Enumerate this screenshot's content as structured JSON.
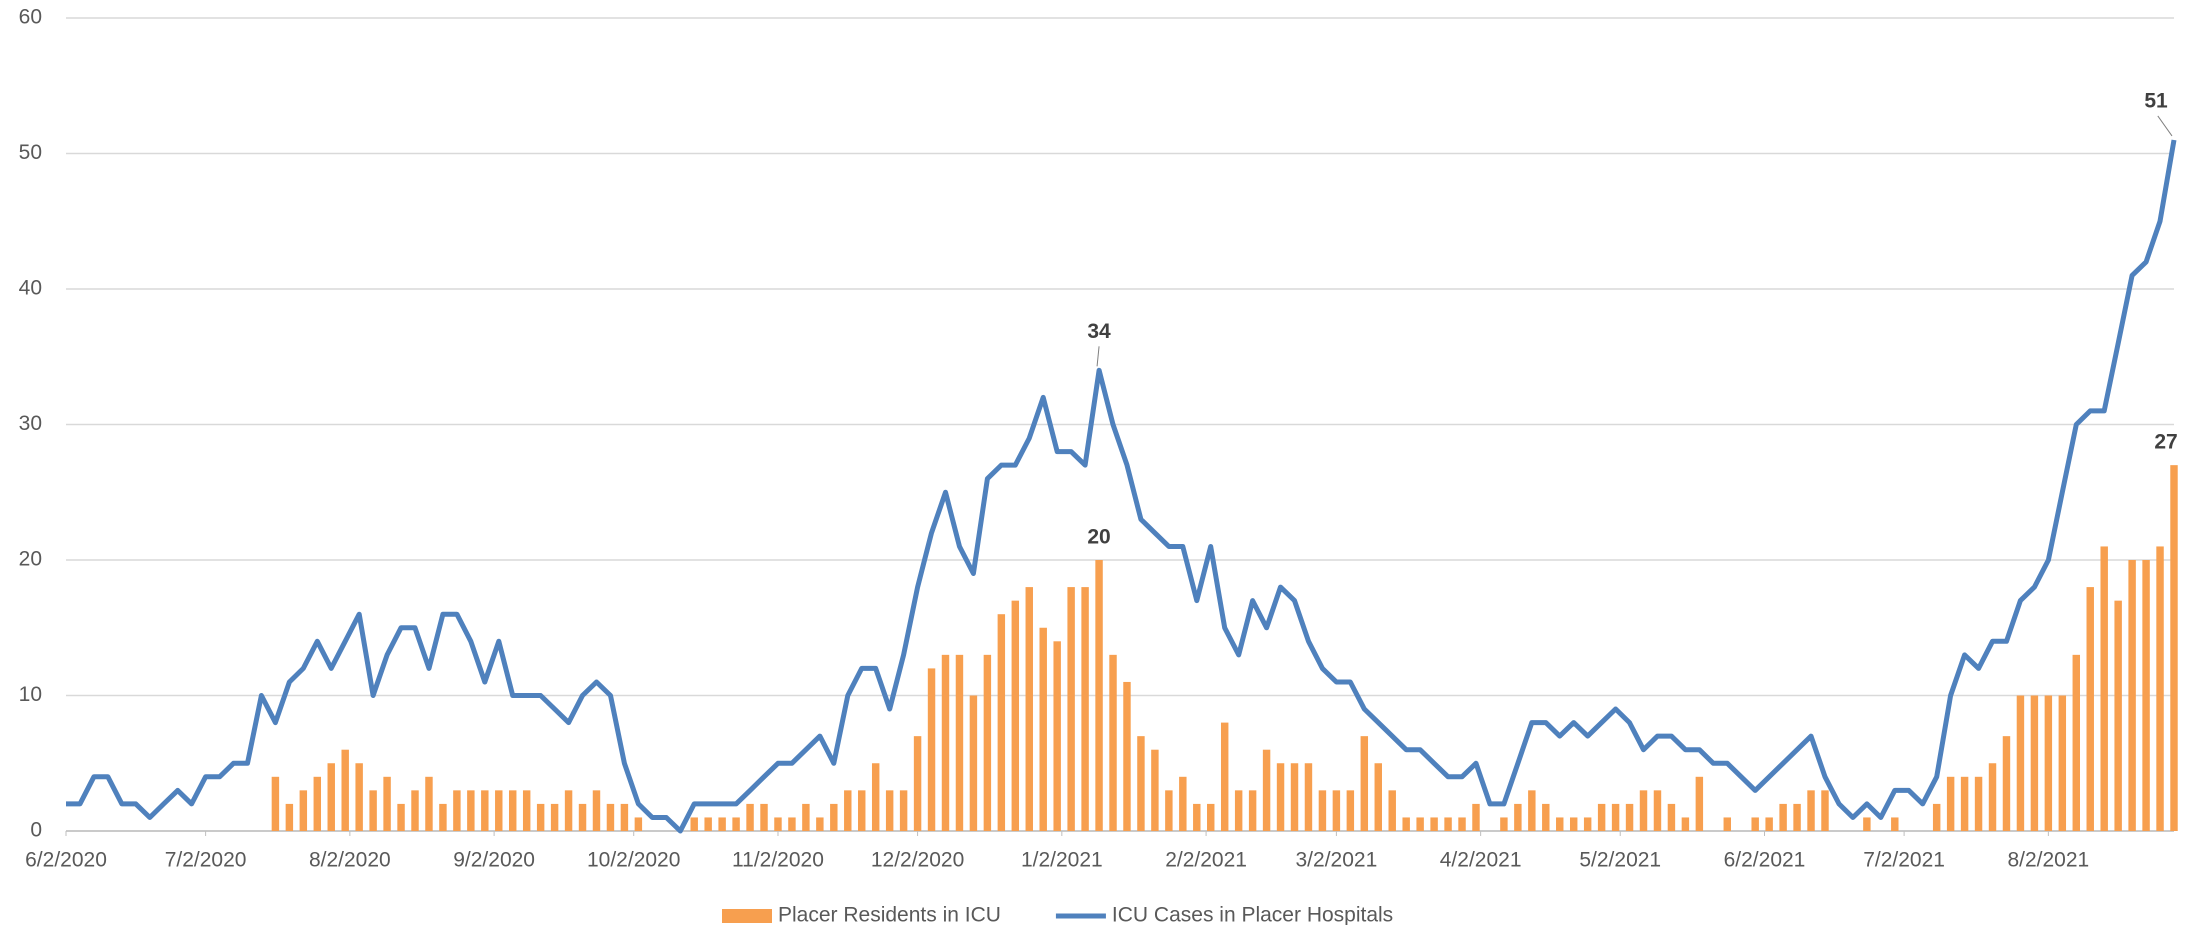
{
  "chart_data": {
    "type": "combo",
    "x": [
      "2020-06-02",
      "2020-06-05",
      "2020-06-08",
      "2020-06-11",
      "2020-06-14",
      "2020-06-17",
      "2020-06-20",
      "2020-06-23",
      "2020-06-26",
      "2020-06-29",
      "2020-07-02",
      "2020-07-05",
      "2020-07-08",
      "2020-07-11",
      "2020-07-14",
      "2020-07-17",
      "2020-07-20",
      "2020-07-23",
      "2020-07-26",
      "2020-07-29",
      "2020-08-01",
      "2020-08-04",
      "2020-08-07",
      "2020-08-10",
      "2020-08-13",
      "2020-08-16",
      "2020-08-19",
      "2020-08-22",
      "2020-08-25",
      "2020-08-28",
      "2020-08-31",
      "2020-09-03",
      "2020-09-06",
      "2020-09-09",
      "2020-09-12",
      "2020-09-15",
      "2020-09-18",
      "2020-09-21",
      "2020-09-24",
      "2020-09-27",
      "2020-09-30",
      "2020-10-03",
      "2020-10-06",
      "2020-10-09",
      "2020-10-12",
      "2020-10-15",
      "2020-10-18",
      "2020-10-21",
      "2020-10-24",
      "2020-10-27",
      "2020-10-30",
      "2020-11-02",
      "2020-11-05",
      "2020-11-08",
      "2020-11-11",
      "2020-11-14",
      "2020-11-17",
      "2020-11-20",
      "2020-11-23",
      "2020-11-26",
      "2020-11-29",
      "2020-12-02",
      "2020-12-05",
      "2020-12-08",
      "2020-12-11",
      "2020-12-14",
      "2020-12-17",
      "2020-12-20",
      "2020-12-23",
      "2020-12-26",
      "2020-12-29",
      "2021-01-01",
      "2021-01-04",
      "2021-01-07",
      "2021-01-10",
      "2021-01-13",
      "2021-01-16",
      "2021-01-19",
      "2021-01-22",
      "2021-01-25",
      "2021-01-28",
      "2021-01-31",
      "2021-02-03",
      "2021-02-06",
      "2021-02-09",
      "2021-02-12",
      "2021-02-15",
      "2021-02-18",
      "2021-02-21",
      "2021-02-24",
      "2021-02-27",
      "2021-03-02",
      "2021-03-05",
      "2021-03-08",
      "2021-03-11",
      "2021-03-14",
      "2021-03-17",
      "2021-03-20",
      "2021-03-23",
      "2021-03-26",
      "2021-03-29",
      "2021-04-01",
      "2021-04-04",
      "2021-04-07",
      "2021-04-10",
      "2021-04-13",
      "2021-04-16",
      "2021-04-19",
      "2021-04-22",
      "2021-04-25",
      "2021-04-28",
      "2021-05-01",
      "2021-05-04",
      "2021-05-07",
      "2021-05-10",
      "2021-05-13",
      "2021-05-16",
      "2021-05-19",
      "2021-05-22",
      "2021-05-25",
      "2021-05-28",
      "2021-05-31",
      "2021-06-03",
      "2021-06-06",
      "2021-06-09",
      "2021-06-12",
      "2021-06-15",
      "2021-06-18",
      "2021-06-21",
      "2021-06-24",
      "2021-06-27",
      "2021-06-30",
      "2021-07-03",
      "2021-07-06",
      "2021-07-09",
      "2021-07-12",
      "2021-07-15",
      "2021-07-18",
      "2021-07-21",
      "2021-07-24",
      "2021-07-27",
      "2021-07-30",
      "2021-08-02",
      "2021-08-05",
      "2021-08-08",
      "2021-08-11",
      "2021-08-14",
      "2021-08-17",
      "2021-08-20",
      "2021-08-23",
      "2021-08-26",
      "2021-08-29"
    ],
    "series": [
      {
        "name": "Placer Residents in ICU",
        "type": "bar",
        "color": "#f79f4f",
        "values": [
          0,
          0,
          0,
          0,
          0,
          0,
          0,
          0,
          0,
          0,
          0,
          0,
          0,
          0,
          0,
          4,
          2,
          3,
          4,
          5,
          6,
          5,
          3,
          4,
          2,
          3,
          4,
          2,
          3,
          3,
          3,
          3,
          3,
          3,
          2,
          2,
          3,
          2,
          3,
          2,
          2,
          1,
          0,
          0,
          0,
          1,
          1,
          1,
          1,
          2,
          2,
          1,
          1,
          2,
          1,
          2,
          3,
          3,
          5,
          3,
          3,
          7,
          12,
          13,
          13,
          10,
          13,
          16,
          17,
          18,
          15,
          14,
          18,
          18,
          20,
          13,
          11,
          7,
          6,
          3,
          4,
          2,
          2,
          8,
          3,
          3,
          6,
          5,
          5,
          5,
          3,
          3,
          3,
          7,
          5,
          3,
          1,
          1,
          1,
          1,
          1,
          2,
          0,
          1,
          2,
          3,
          2,
          1,
          1,
          1,
          2,
          2,
          2,
          3,
          3,
          2,
          1,
          4,
          0,
          1,
          0,
          1,
          1,
          2,
          2,
          3,
          3,
          0,
          0,
          1,
          0,
          1,
          0,
          0,
          2,
          4,
          4,
          4,
          5,
          7,
          10,
          10,
          10,
          10,
          13,
          18,
          21,
          17,
          20,
          20,
          21,
          27
        ]
      },
      {
        "name": "ICU Cases in Placer Hospitals",
        "type": "line",
        "color": "#4f81bd",
        "values": [
          2,
          2,
          4,
          4,
          2,
          2,
          1,
          2,
          3,
          2,
          4,
          4,
          5,
          5,
          10,
          8,
          11,
          12,
          14,
          12,
          14,
          16,
          10,
          13,
          15,
          15,
          12,
          16,
          16,
          14,
          11,
          14,
          10,
          10,
          10,
          9,
          8,
          10,
          11,
          10,
          5,
          2,
          1,
          1,
          0,
          2,
          2,
          2,
          2,
          3,
          4,
          5,
          5,
          6,
          7,
          5,
          10,
          12,
          12,
          9,
          13,
          18,
          22,
          25,
          21,
          19,
          26,
          27,
          27,
          29,
          32,
          28,
          28,
          27,
          34,
          30,
          27,
          23,
          22,
          21,
          21,
          17,
          21,
          15,
          13,
          17,
          15,
          18,
          17,
          14,
          12,
          11,
          11,
          9,
          8,
          7,
          6,
          6,
          5,
          4,
          4,
          5,
          2,
          2,
          5,
          8,
          8,
          7,
          8,
          7,
          8,
          9,
          8,
          6,
          7,
          7,
          6,
          6,
          5,
          5,
          4,
          3,
          4,
          5,
          6,
          7,
          4,
          2,
          1,
          2,
          1,
          3,
          3,
          2,
          4,
          10,
          13,
          12,
          14,
          14,
          17,
          18,
          20,
          25,
          30,
          31,
          31,
          36,
          41,
          42,
          45,
          51
        ]
      }
    ],
    "labeled_points": [
      {
        "series": 1,
        "index": 74
      },
      {
        "series": 0,
        "index": 74
      },
      {
        "series": 1,
        "index": 151
      },
      {
        "series": 0,
        "index": 151
      }
    ],
    "xlim": [
      "2020-06-02",
      "2021-08-29"
    ],
    "xticks": [
      {
        "value": "2020-06-02",
        "label": "6/2/2020"
      },
      {
        "value": "2020-07-02",
        "label": "7/2/2020"
      },
      {
        "value": "2020-08-02",
        "label": "8/2/2020"
      },
      {
        "value": "2020-09-02",
        "label": "9/2/2020"
      },
      {
        "value": "2020-10-02",
        "label": "10/2/2020"
      },
      {
        "value": "2020-11-02",
        "label": "11/2/2020"
      },
      {
        "value": "2020-12-02",
        "label": "12/2/2020"
      },
      {
        "value": "2021-01-02",
        "label": "1/2/2021"
      },
      {
        "value": "2021-02-02",
        "label": "2/2/2021"
      },
      {
        "value": "2021-03-02",
        "label": "3/2/2021"
      },
      {
        "value": "2021-04-02",
        "label": "4/2/2021"
      },
      {
        "value": "2021-05-02",
        "label": "5/2/2021"
      },
      {
        "value": "2021-06-02",
        "label": "6/2/2021"
      },
      {
        "value": "2021-07-02",
        "label": "7/2/2021"
      },
      {
        "value": "2021-08-02",
        "label": "8/2/2021"
      }
    ],
    "ylim": [
      0,
      60
    ],
    "yticks": [
      0,
      10,
      20,
      30,
      40,
      50,
      60
    ],
    "grid": true,
    "legend": "bottom"
  }
}
